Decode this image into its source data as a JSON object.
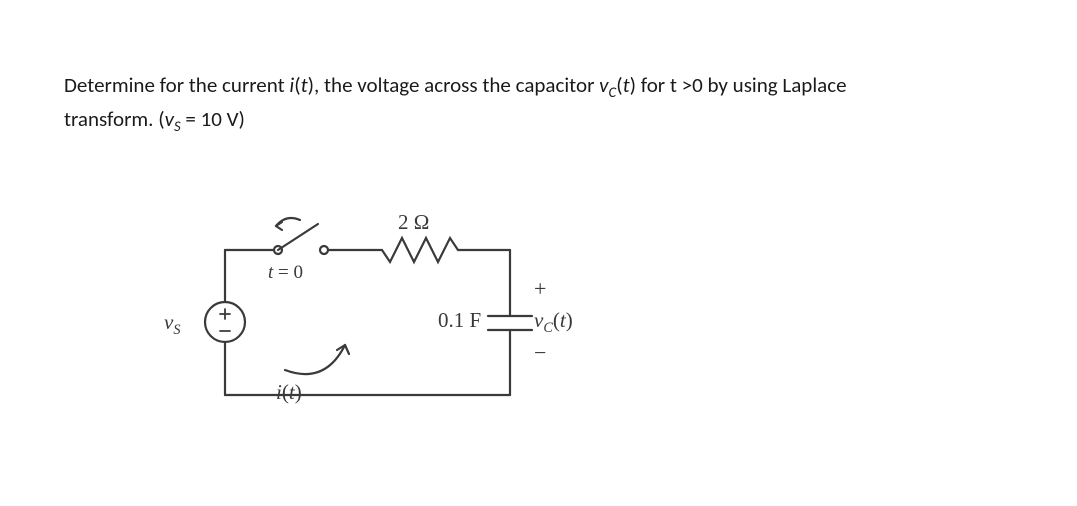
{
  "problem": {
    "line1_html": "Determine for the current <em>i</em>(<em>t</em>), the voltage across the capacitor <em>v<sub>C</sub></em>(<em>t</em>) for t >0 by using Laplace",
    "line2_html": "transform. (<em>v<sub>S</sub></em> = 10 V)"
  },
  "circuit": {
    "stroke": "#3a3a3a",
    "stroke_width": 2.2,
    "vs_label_html": "<em>v<sub>S</sub></em>",
    "switch_time_label_html": "<em>t</em> = 0",
    "resistor_label": "2 Ω",
    "cap_label": "0.1 F",
    "vc_label_html": "<em>v<sub>C</sub></em>(<em>t</em>)",
    "current_label_html": "<em>i</em>(<em>t</em>)",
    "plus": "+",
    "minus": "−",
    "font_color": "#3a3a3a"
  }
}
